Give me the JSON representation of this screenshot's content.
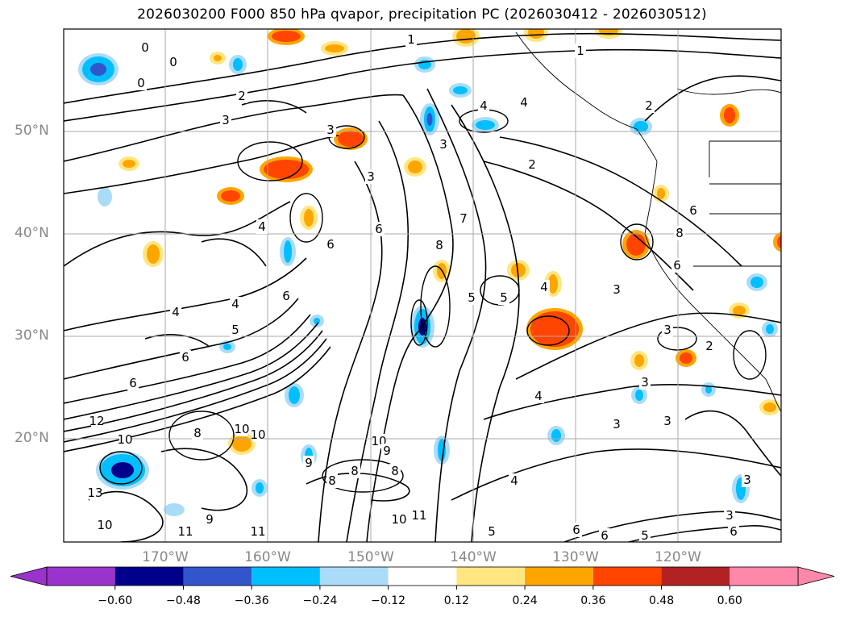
{
  "title": "2026030200 F000 850 hPa qvapor, precipitation PC (2026030412 - 2026030512)",
  "map": {
    "lat_labels": [
      "50°N",
      "40°N",
      "30°N",
      "20°N"
    ],
    "lon_labels": [
      "170°W",
      "160°W",
      "150°W",
      "140°W",
      "130°W",
      "120°W"
    ],
    "contour_labels": [
      "0",
      "1",
      "2",
      "3",
      "4",
      "5",
      "6",
      "7",
      "8",
      "9",
      "10",
      "11",
      "12",
      "13"
    ],
    "grid": true
  },
  "colorbar": {
    "ticks": [
      "−0.60",
      "−0.48",
      "−0.36",
      "−0.24",
      "−0.12",
      "0.12",
      "0.24",
      "0.36",
      "0.48",
      "0.60"
    ],
    "colors": [
      "#9933cc",
      "#00008b",
      "#3355cc",
      "#00bfff",
      "#aadcf8",
      "#ffffff",
      "#ffe680",
      "#ffa500",
      "#ff4500",
      "#b22222",
      "#ff88aa"
    ],
    "extend": "both"
  },
  "colors": {
    "grid": "#aaaaaa",
    "contour": "#000000",
    "frame": "#000000"
  }
}
